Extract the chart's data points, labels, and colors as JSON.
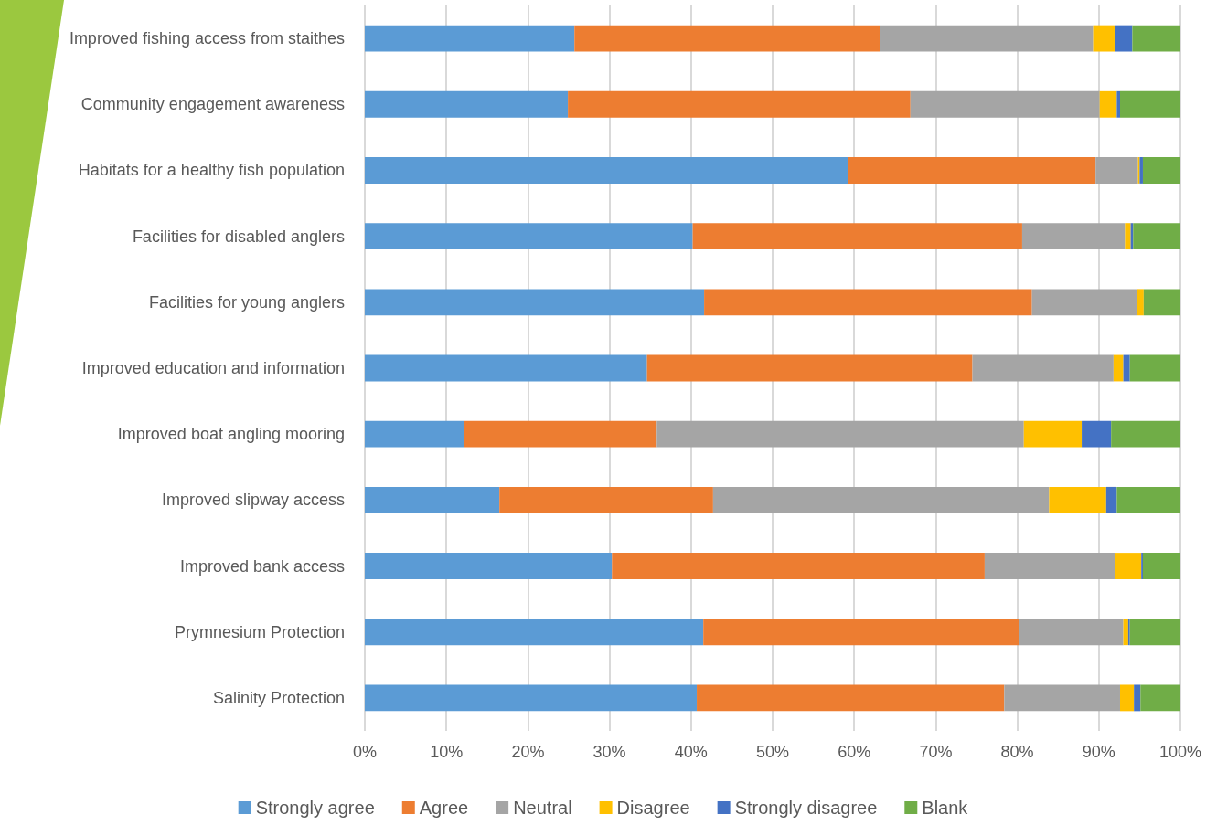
{
  "chart_data": {
    "type": "bar",
    "orientation": "horizontal",
    "stacked": true,
    "categories": [
      "Improved fishing access from staithes",
      "Community engagement awareness",
      "Habitats for a healthy fish population",
      "Facilities for disabled anglers",
      "Facilities for young anglers",
      "Improved education and information",
      "Improved boat angling mooring",
      "Improved slipway access",
      "Improved bank access",
      "Prymnesium Protection",
      "Salinity Protection"
    ],
    "series": [
      {
        "name": "Strongly agree",
        "color": "#5b9bd5",
        "values": [
          25.7,
          24.9,
          59.2,
          40.2,
          41.6,
          34.6,
          12.2,
          16.5,
          30.3,
          41.5,
          40.7
        ]
      },
      {
        "name": "Agree",
        "color": "#ed7d31",
        "values": [
          37.5,
          42.0,
          30.4,
          40.4,
          40.2,
          39.9,
          23.6,
          26.2,
          45.7,
          38.7,
          37.7
        ]
      },
      {
        "name": "Neutral",
        "color": "#a5a5a5",
        "values": [
          26.1,
          23.2,
          5.2,
          12.6,
          12.9,
          17.3,
          45.0,
          41.2,
          16.0,
          12.8,
          14.2
        ]
      },
      {
        "name": "Disagree",
        "color": "#ffc000",
        "values": [
          2.7,
          2.1,
          0.2,
          0.7,
          0.8,
          1.2,
          7.1,
          7.0,
          3.2,
          0.6,
          1.7
        ]
      },
      {
        "name": "Strongly disagree",
        "color": "#4472c4",
        "values": [
          2.1,
          0.4,
          0.4,
          0.3,
          0,
          0.8,
          3.6,
          1.3,
          0.2,
          0.2,
          0.8
        ]
      },
      {
        "name": "Blank",
        "color": "#70ad47",
        "values": [
          5.9,
          7.4,
          4.6,
          5.8,
          4.5,
          6.2,
          8.5,
          7.8,
          4.6,
          6.2,
          4.9
        ]
      }
    ],
    "xlim": [
      0,
      100
    ],
    "xticks": [
      {
        "value": 0,
        "label": "0%"
      },
      {
        "value": 10,
        "label": "10%"
      },
      {
        "value": 20,
        "label": "20%"
      },
      {
        "value": 30,
        "label": "30%"
      },
      {
        "value": 40,
        "label": "40%"
      },
      {
        "value": 50,
        "label": "50%"
      },
      {
        "value": 60,
        "label": "60%"
      },
      {
        "value": 70,
        "label": "70%"
      },
      {
        "value": 80,
        "label": "80%"
      },
      {
        "value": 90,
        "label": "90%"
      },
      {
        "value": 100,
        "label": "100%"
      }
    ],
    "grid": "x",
    "legend": "bottom"
  }
}
